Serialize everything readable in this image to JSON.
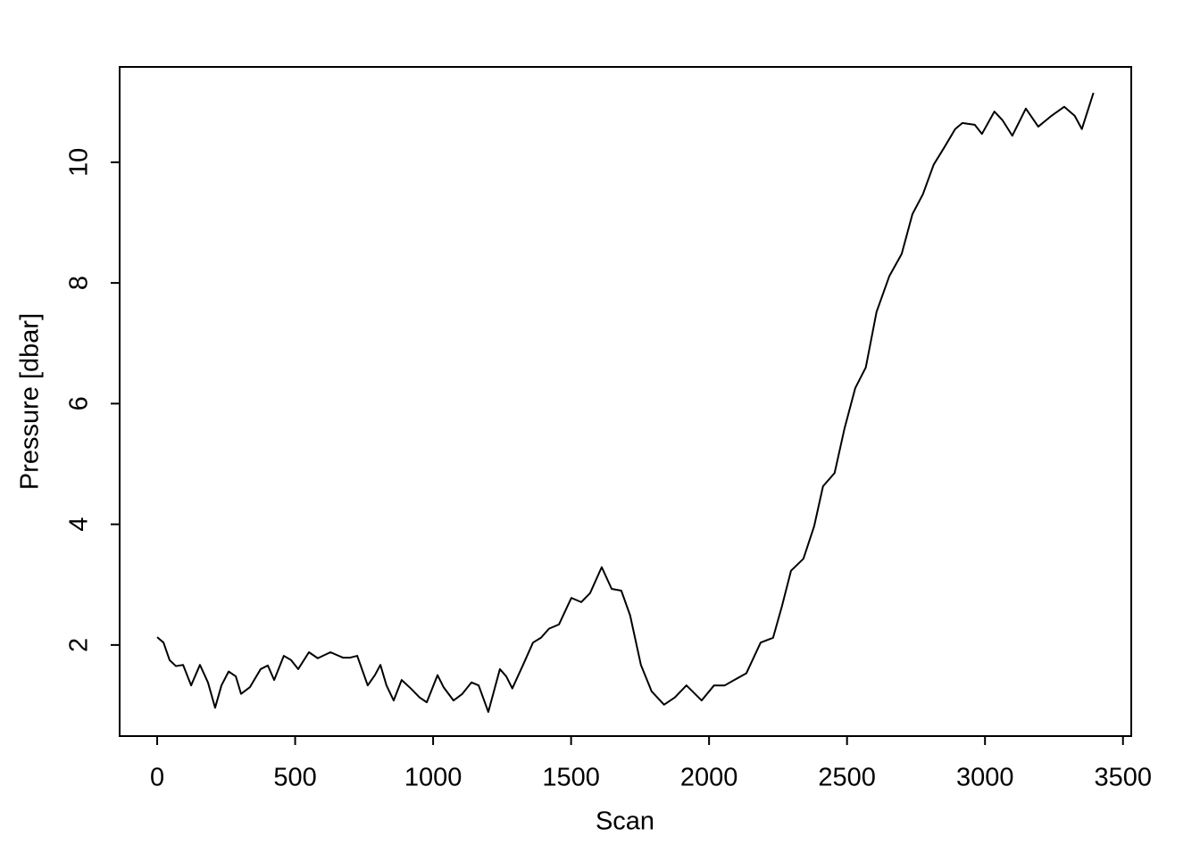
{
  "chart_data": {
    "type": "line",
    "x_label": "Scan",
    "y_label": "Pressure [dbar]",
    "x": [
      0,
      23,
      45,
      68,
      94,
      123,
      155,
      184,
      210,
      233,
      259,
      285,
      304,
      336,
      375,
      401,
      424,
      459,
      485,
      511,
      550,
      582,
      628,
      673,
      699,
      725,
      763,
      789,
      809,
      831,
      857,
      886,
      919,
      951,
      977,
      1016,
      1038,
      1074,
      1106,
      1139,
      1165,
      1200,
      1242,
      1265,
      1287,
      1326,
      1362,
      1391,
      1420,
      1456,
      1501,
      1537,
      1569,
      1611,
      1647,
      1682,
      1714,
      1753,
      1792,
      1837,
      1876,
      1918,
      1973,
      2018,
      2057,
      2103,
      2135,
      2187,
      2232,
      2264,
      2297,
      2342,
      2381,
      2413,
      2455,
      2491,
      2530,
      2568,
      2607,
      2653,
      2698,
      2737,
      2775,
      2814,
      2853,
      2892,
      2918,
      2963,
      2989,
      3034,
      3063,
      3099,
      3148,
      3193,
      3241,
      3287,
      3325,
      3351,
      3393
    ],
    "values": [
      2.13,
      2.04,
      1.75,
      1.65,
      1.67,
      1.33,
      1.67,
      1.38,
      0.96,
      1.33,
      1.56,
      1.48,
      1.19,
      1.3,
      1.6,
      1.66,
      1.42,
      1.82,
      1.75,
      1.6,
      1.88,
      1.78,
      1.88,
      1.79,
      1.79,
      1.82,
      1.33,
      1.5,
      1.67,
      1.33,
      1.08,
      1.42,
      1.28,
      1.13,
      1.05,
      1.5,
      1.3,
      1.08,
      1.19,
      1.38,
      1.33,
      0.89,
      1.6,
      1.48,
      1.28,
      1.67,
      2.04,
      2.12,
      2.27,
      2.34,
      2.78,
      2.71,
      2.86,
      3.29,
      2.93,
      2.9,
      2.49,
      1.67,
      1.23,
      1.01,
      1.13,
      1.33,
      1.08,
      1.33,
      1.33,
      1.45,
      1.53,
      2.04,
      2.12,
      2.64,
      3.23,
      3.43,
      3.97,
      4.63,
      4.85,
      5.59,
      6.26,
      6.6,
      7.52,
      8.11,
      8.48,
      9.14,
      9.47,
      9.96,
      10.25,
      10.55,
      10.65,
      10.62,
      10.47,
      10.84,
      10.7,
      10.44,
      10.89,
      10.59,
      10.77,
      10.92,
      10.77,
      10.55,
      11.15
    ],
    "color": "#000000",
    "xlim": [
      -136,
      3530
    ],
    "xticks": [
      0,
      500,
      1000,
      1500,
      2000,
      2500,
      3000,
      3500
    ],
    "ylim": [
      0.49,
      11.58
    ],
    "yticks": [
      2,
      4,
      6,
      8,
      10
    ]
  }
}
